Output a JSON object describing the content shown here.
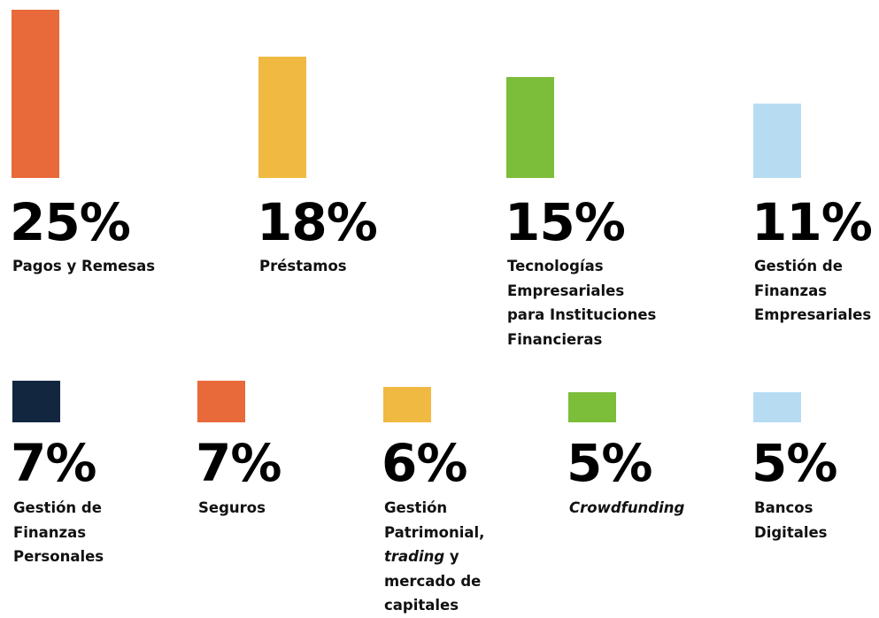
{
  "chart_data": {
    "type": "bar",
    "unit": "%",
    "categories": [
      "Pagos y Remesas",
      "Préstamos",
      "Tecnologías Empresariales para Instituciones Financieras",
      "Gestión de Finanzas Empresariales",
      "Gestión de Finanzas Personales",
      "Seguros",
      "Gestión Patrimonial, trading y mercado de capitales",
      "Crowdfunding",
      "Bancos Digitales"
    ],
    "values": [
      25,
      18,
      15,
      11,
      7,
      7,
      6,
      5,
      5
    ],
    "value_labels": [
      "25%",
      "18%",
      "15%",
      "11%",
      "7%",
      "7%",
      "6%",
      "5%",
      "5%"
    ],
    "label_lines": [
      [
        [
          {
            "t": "Pagos y Remesas"
          }
        ]
      ],
      [
        [
          {
            "t": "Préstamos"
          }
        ]
      ],
      [
        [
          {
            "t": "Tecnologías"
          }
        ],
        [
          {
            "t": "Empresariales"
          }
        ],
        [
          {
            "t": "para Instituciones"
          }
        ],
        [
          {
            "t": "Financieras"
          }
        ]
      ],
      [
        [
          {
            "t": "Gestión de"
          }
        ],
        [
          {
            "t": "Finanzas"
          }
        ],
        [
          {
            "t": "Empresariales"
          }
        ]
      ],
      [
        [
          {
            "t": "Gestión de"
          }
        ],
        [
          {
            "t": "Finanzas"
          }
        ],
        [
          {
            "t": "Personales"
          }
        ]
      ],
      [
        [
          {
            "t": "Seguros"
          }
        ]
      ],
      [
        [
          {
            "t": "Gestión"
          }
        ],
        [
          {
            "t": "Patrimonial,"
          }
        ],
        [
          {
            "t": "trading",
            "italic": true
          },
          {
            "t": " y"
          }
        ],
        [
          {
            "t": "mercado de"
          }
        ],
        [
          {
            "t": "capitales"
          }
        ]
      ],
      [
        [
          {
            "t": "Crowdfunding",
            "italic": true
          }
        ]
      ],
      [
        [
          {
            "t": "Bancos"
          }
        ],
        [
          {
            "t": "Digitales"
          }
        ]
      ]
    ],
    "colors": [
      "#E8693A",
      "#F0B941",
      "#7CBD3A",
      "#B7DCF2",
      "#12263F",
      "#E8693A",
      "#F0B941",
      "#7CBD3A",
      "#B7DCF2"
    ],
    "ylim": [
      0,
      25
    ]
  }
}
